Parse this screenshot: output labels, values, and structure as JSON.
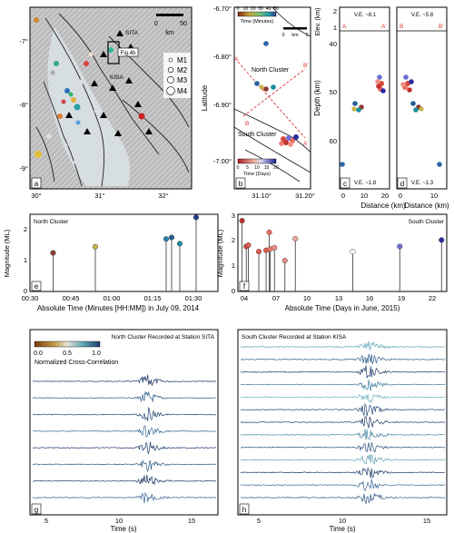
{
  "panels": {
    "a": {
      "letter": "a",
      "xticks": [
        "30°",
        "31°",
        "32°"
      ],
      "yticks": [
        "-7°",
        "-8°",
        "-9°"
      ],
      "scale": {
        "ticks": [
          "0",
          "50"
        ],
        "unit": "km"
      },
      "labels": {
        "sita": "SITA",
        "kisa": "KISA",
        "fig4b": "Fig.4b"
      },
      "legend": [
        "M1",
        "M2",
        "M3",
        "M4"
      ]
    },
    "b": {
      "letter": "b",
      "ylabel": "Latitude",
      "xticks": [
        "31.10°",
        "31.20°"
      ],
      "yticks": [
        "-6.70°",
        "-6.80°",
        "-6.90°",
        "-7.00°"
      ],
      "colorbar_top": {
        "ticks": [
          "0",
          "10",
          "20",
          "30",
          "40",
          "50"
        ],
        "label": "Time (Minutes)"
      },
      "colorbar_bottom": {
        "ticks": [
          "0",
          "5",
          "10",
          "15",
          "20"
        ],
        "label": "Time (Days)"
      },
      "scale": {
        "ticks": [
          "0",
          "km",
          "5"
        ]
      },
      "north_label": "North Cluster",
      "south_label": "South Cluster",
      "profile_labels": [
        "A",
        "A'",
        "B",
        "B'"
      ]
    },
    "c": {
      "letter": "c",
      "elev_label": "Elev. (km)",
      "elev_ticks": [
        "2",
        "1"
      ],
      "depth_label": "Depth (km)",
      "depth_ticks": [
        "40",
        "50",
        "60"
      ],
      "ve_top": "V.E. ~8.1",
      "ve_bottom": "V.E. ~1.8",
      "end_left": "A",
      "end_right": "A'",
      "xticks": [
        "0",
        "10",
        "20"
      ],
      "xlabel": "Distance (km)"
    },
    "d": {
      "letter": "d",
      "ve_top": "V.E. ~5.8",
      "ve_bottom": "V.E. ~1.3",
      "end_left": "B",
      "end_right": "B'",
      "xticks": [
        "0",
        "10"
      ],
      "xlabel": "Distance (km)"
    },
    "e": {
      "letter": "e",
      "title": "North Cluster",
      "ylabel": "Magnitude (ML)",
      "yticks": [
        "0",
        "1",
        "2"
      ],
      "xticks": [
        "00:30",
        "00:45",
        "01:00",
        "01:15",
        "01:30"
      ],
      "xlabel": "Absolute Time (Minutes [HH:MM]) in July 09, 2014"
    },
    "f": {
      "letter": "f",
      "title": "South Cluster",
      "ylabel": "Magnitude (ML)",
      "yticks": [
        "0",
        "1",
        "2",
        "3"
      ],
      "xticks": [
        "04",
        "07",
        "10",
        "13",
        "16",
        "19",
        "22"
      ],
      "xlabel": "Absolute Time (Days in June, 2015)"
    },
    "g": {
      "letter": "g",
      "title": "North Cluster Recorded at Station SITA",
      "colorbar": {
        "ticks": [
          "0.0",
          "0.5",
          "1.0"
        ],
        "label": "Normalized Cross-Correlation"
      },
      "xticks": [
        "5",
        "10",
        "15"
      ],
      "xlabel": "Time (s)"
    },
    "h": {
      "letter": "h",
      "title": "South Cluster Recorded at Station KISA",
      "xticks": [
        "5",
        "10",
        "15"
      ],
      "xlabel": "Time (s)"
    }
  },
  "chart_data": [
    {
      "type": "scatter",
      "panel": "e",
      "title": "North Cluster",
      "x_unit": "minutes",
      "xlim": [
        30,
        99
      ],
      "ylim": [
        0,
        2.5
      ],
      "x": [
        38.5,
        54,
        80,
        82,
        85,
        91
      ],
      "values": [
        1.25,
        1.45,
        1.7,
        1.75,
        1.55,
        2.4
      ],
      "colors": [
        "#8b3a2f",
        "#c8b24a",
        "#2c7fa8",
        "#245f9a",
        "#1b8f9c",
        "#1f3d8c"
      ]
    },
    {
      "type": "scatter",
      "panel": "f",
      "title": "South Cluster",
      "x_unit": "days in June 2015",
      "xlim": [
        2.5,
        22.5
      ],
      "ylim": [
        0,
        3
      ],
      "x": [
        2.9,
        3.3,
        3.5,
        4.5,
        5.2,
        5.5,
        5.6,
        6.0,
        7.0,
        8.0,
        13.5,
        18.0,
        22.0
      ],
      "values": [
        2.75,
        1.75,
        1.8,
        1.55,
        1.6,
        2.3,
        1.65,
        1.7,
        1.2,
        2.05,
        1.55,
        1.75,
        2.0
      ],
      "colors": [
        "#c0312f",
        "#d84a3d",
        "#e05d52",
        "#e25a4a",
        "#e45c4a",
        "#e86b62",
        "#ec7b6f",
        "#f08f84",
        "#ec8a84",
        "#f4a89c",
        "#ffffff",
        "#6c6cd8",
        "#2b2ba0"
      ]
    }
  ]
}
